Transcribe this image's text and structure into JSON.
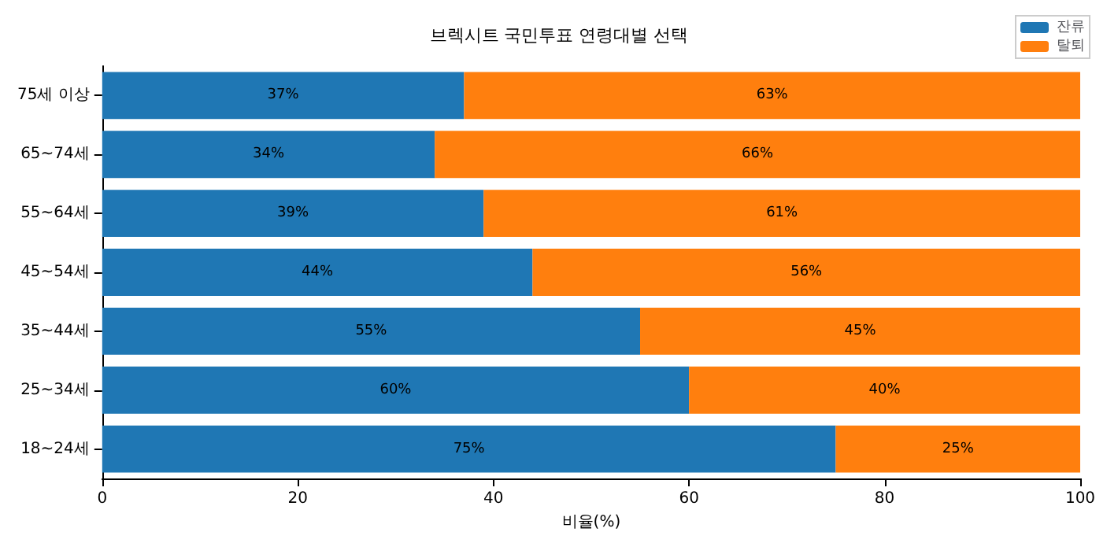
{
  "chart_data": {
    "type": "bar",
    "orientation": "horizontal",
    "stacked": true,
    "title": "브렉시트 국민투표 연령대별 선택",
    "xlabel": "비율(%)",
    "categories": [
      "75세 이상",
      "65~74세",
      "55~64세",
      "45~54세",
      "35~44세",
      "25~34세",
      "18~24세"
    ],
    "series": [
      {
        "name": "잔류",
        "color": "#1f77b4",
        "values": [
          37,
          34,
          39,
          44,
          55,
          60,
          75
        ],
        "value_labels": [
          "37%",
          "34%",
          "39%",
          "44%",
          "55%",
          "60%",
          "75%"
        ]
      },
      {
        "name": "탈퇴",
        "color": "#ff7f0e",
        "values": [
          63,
          66,
          61,
          56,
          45,
          40,
          25
        ],
        "value_labels": [
          "63%",
          "66%",
          "61%",
          "56%",
          "45%",
          "40%",
          "25%"
        ]
      }
    ],
    "xlim": [
      0,
      100
    ],
    "xticks": [
      0,
      20,
      40,
      60,
      80,
      100
    ],
    "legend": "top right",
    "grid": false
  }
}
